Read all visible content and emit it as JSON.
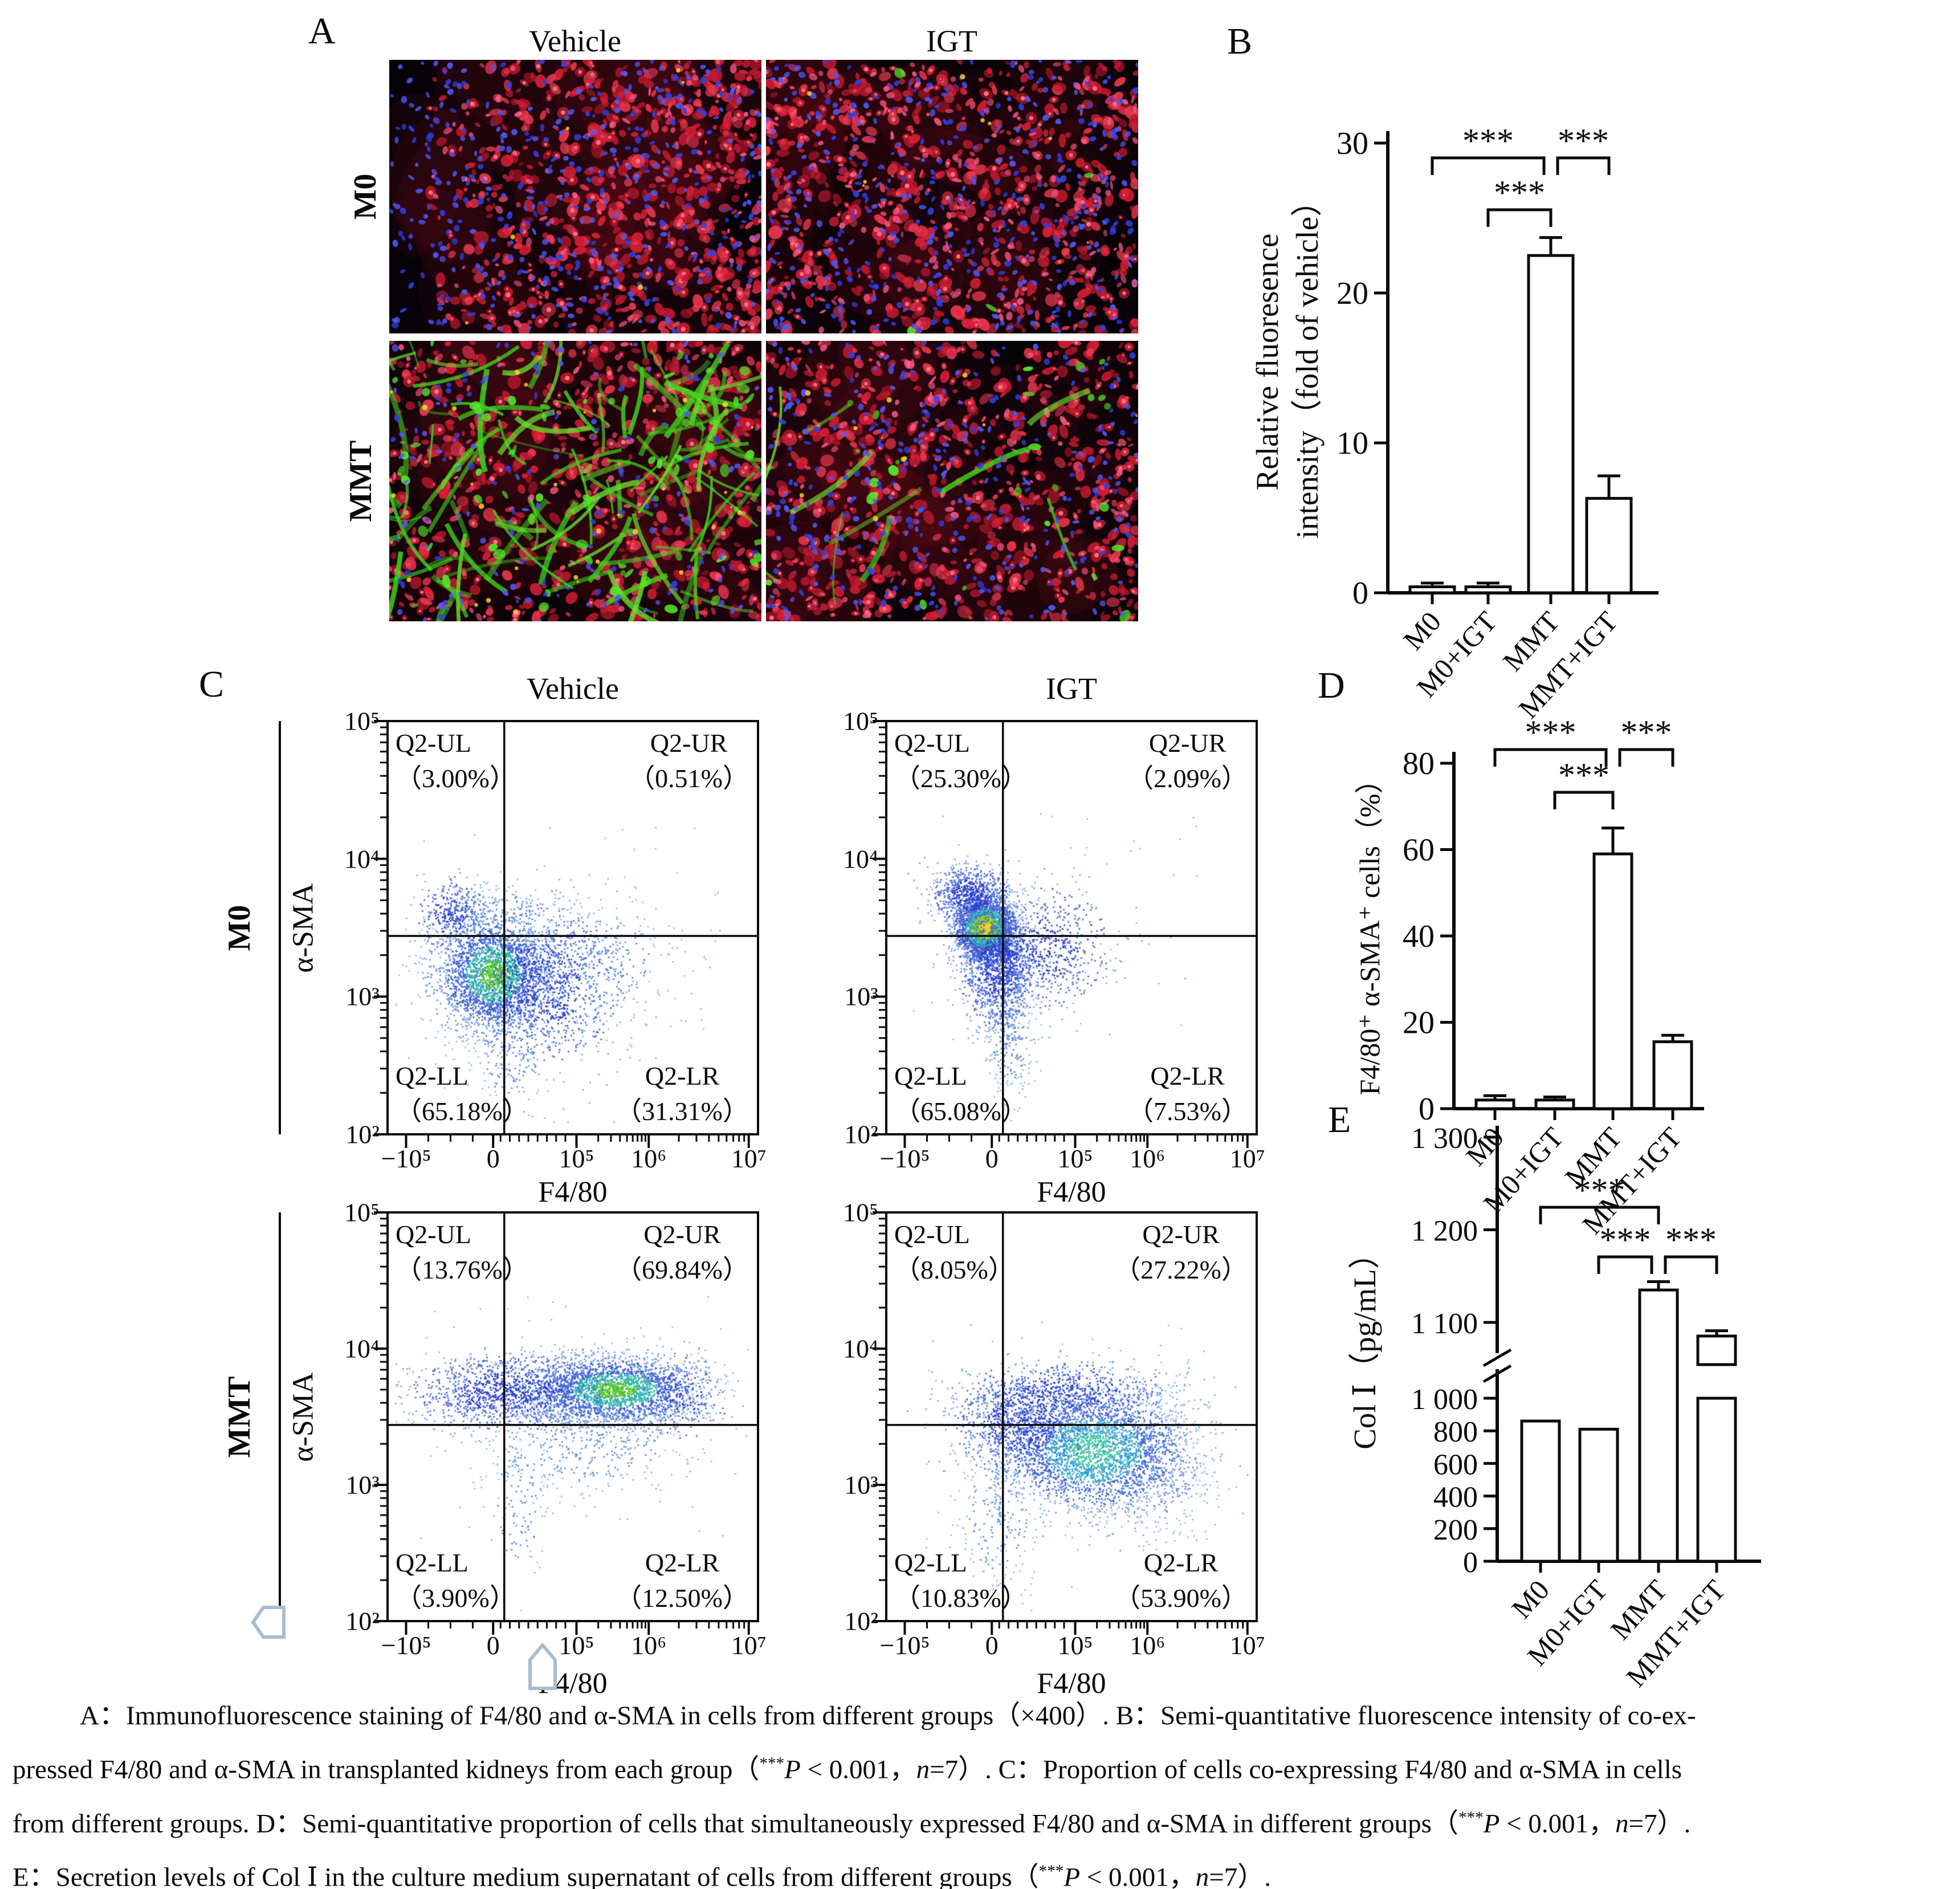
{
  "panel_a": {
    "label": "A",
    "columns": [
      "Vehicle",
      "IGT"
    ],
    "rows": [
      "M0",
      "MMT"
    ],
    "micrographs": [
      {
        "name": "m0-vehicle",
        "seed": 11,
        "red": 660,
        "pink": 120,
        "blue": 430,
        "fibers": 0,
        "greenBlobs": 0,
        "yellow": 6,
        "biasRight": true
      },
      {
        "name": "m0-igt",
        "seed": 22,
        "red": 680,
        "pink": 230,
        "blue": 390,
        "fibers": 0,
        "greenBlobs": 4,
        "yellow": 8,
        "biasRight": false
      },
      {
        "name": "mmt-vehicle",
        "seed": 33,
        "red": 640,
        "pink": 90,
        "blue": 160,
        "fibers": 110,
        "greenBlobs": 70,
        "yellow": 30,
        "biasRight": false
      },
      {
        "name": "mmt-igt",
        "seed": 44,
        "red": 660,
        "pink": 140,
        "blue": 330,
        "fibers": 10,
        "greenBlobs": 26,
        "yellow": 10,
        "biasRight": false
      }
    ]
  },
  "panel_b": {
    "label": "B"
  },
  "panel_c": {
    "label": "C",
    "columns": [
      "Vehicle",
      "IGT"
    ],
    "rows": [
      "M0",
      "MMT"
    ],
    "ylabel": "α-SMA",
    "xlabel": "F4/80",
    "y_ticks": [
      "10⁵",
      "10⁴",
      "10³",
      "10²"
    ],
    "x_ticks": [
      "−10⁵",
      "0",
      "10⁵",
      "10⁶",
      "10⁷"
    ],
    "plots": [
      {
        "name": "m0-vehicle",
        "seed": 101,
        "quadrants": [
          {
            "id": "Q2-UL",
            "pct": "（3.00%）"
          },
          {
            "id": "Q2-UR",
            "pct": "（0.51%）"
          },
          {
            "id": "Q2-LL",
            "pct": "（65.18%）"
          },
          {
            "id": "Q2-LR",
            "pct": "（31.31%）"
          }
        ],
        "clusters": [
          [
            0.285,
            0.615,
            0.075,
            0.07,
            2400,
            "core_green"
          ],
          [
            0.42,
            0.64,
            0.105,
            0.09,
            1100,
            "blue"
          ],
          [
            0.17,
            0.47,
            0.045,
            0.045,
            320,
            "blue"
          ],
          [
            0.55,
            0.58,
            0.12,
            0.08,
            330,
            "light"
          ],
          [
            0.33,
            0.82,
            0.05,
            0.07,
            140,
            "light"
          ],
          [
            0.3,
            0.46,
            0.1,
            0.03,
            160,
            "light"
          ],
          [
            0.45,
            0.55,
            0.42,
            0.3,
            60,
            "uni"
          ]
        ]
      },
      {
        "name": "m0-igt",
        "seed": 102,
        "quadrants": [
          {
            "id": "Q2-UL",
            "pct": "（25.30%）"
          },
          {
            "id": "Q2-UR",
            "pct": "（2.09%）"
          },
          {
            "id": "Q2-LL",
            "pct": "（65.08%）"
          },
          {
            "id": "Q2-LR",
            "pct": "（7.53%）"
          }
        ],
        "clusters": [
          [
            0.265,
            0.5,
            0.042,
            0.038,
            2400,
            "core_yellow"
          ],
          [
            0.3,
            0.6,
            0.05,
            0.07,
            1200,
            "blue"
          ],
          [
            0.225,
            0.42,
            0.05,
            0.035,
            700,
            "blue"
          ],
          [
            0.42,
            0.55,
            0.09,
            0.07,
            650,
            "blue"
          ],
          [
            0.33,
            0.76,
            0.035,
            0.08,
            260,
            "light"
          ],
          [
            0.45,
            0.5,
            0.4,
            0.28,
            50,
            "uni"
          ]
        ]
      },
      {
        "name": "mmt-vehicle",
        "seed": 103,
        "quadrants": [
          {
            "id": "Q2-UL",
            "pct": "（13.76%）"
          },
          {
            "id": "Q2-UR",
            "pct": "（69.84%）"
          },
          {
            "id": "Q2-LL",
            "pct": "（3.90%）"
          },
          {
            "id": "Q2-LR",
            "pct": "（12.50%）"
          }
        ],
        "clusters": [
          [
            0.615,
            0.435,
            0.115,
            0.042,
            2400,
            "core_green"
          ],
          [
            0.33,
            0.44,
            0.13,
            0.045,
            1250,
            "blue"
          ],
          [
            0.52,
            0.56,
            0.16,
            0.07,
            420,
            "light"
          ],
          [
            0.35,
            0.72,
            0.04,
            0.1,
            110,
            "light"
          ],
          [
            0.8,
            0.45,
            0.06,
            0.05,
            160,
            "blue"
          ],
          [
            0.5,
            0.5,
            0.42,
            0.3,
            70,
            "uni"
          ]
        ]
      },
      {
        "name": "mmt-igt",
        "seed": 104,
        "quadrants": [
          {
            "id": "Q2-UL",
            "pct": "（8.05%）"
          },
          {
            "id": "Q2-UR",
            "pct": "（27.22%）"
          },
          {
            "id": "Q2-LL",
            "pct": "（10.83%）"
          },
          {
            "id": "Q2-LR",
            "pct": "（53.90%）"
          }
        ],
        "clusters": [
          [
            0.56,
            0.585,
            0.125,
            0.075,
            2600,
            "core_cyan"
          ],
          [
            0.36,
            0.52,
            0.09,
            0.06,
            900,
            "blue"
          ],
          [
            0.48,
            0.44,
            0.14,
            0.035,
            600,
            "blue"
          ],
          [
            0.7,
            0.62,
            0.1,
            0.09,
            500,
            "light"
          ],
          [
            0.3,
            0.75,
            0.06,
            0.09,
            220,
            "light"
          ],
          [
            0.5,
            0.55,
            0.4,
            0.3,
            90,
            "uni"
          ]
        ]
      }
    ]
  },
  "panel_d": {
    "label": "D"
  },
  "panel_e": {
    "label": "E"
  },
  "chart_data": [
    {
      "id": "B",
      "type": "bar",
      "categories": [
        "M0",
        "M0+IGT",
        "MMT",
        "MMT+IGT"
      ],
      "values": [
        0.4,
        0.4,
        22.5,
        6.3
      ],
      "errors": [
        0.25,
        0.25,
        1.2,
        1.5
      ],
      "ylabel_lines": [
        "Relative fluoresence",
        "intensity（fold of vehicle）"
      ],
      "yticks": [
        0,
        10,
        20,
        30
      ],
      "ytick_labels": [
        "0",
        "10",
        "20",
        "30"
      ],
      "ylim": [
        0,
        30
      ],
      "sig": [
        {
          "a": 0,
          "b": 2,
          "label": "***",
          "tier": 1,
          "dx2": -12
        },
        {
          "a": 1,
          "b": 2,
          "label": "***",
          "tier": 0
        },
        {
          "a": 2,
          "b": 3,
          "label": "***",
          "tier": 1,
          "dx1": 12
        }
      ]
    },
    {
      "id": "D",
      "type": "bar",
      "categories": [
        "M0",
        "M0+IGT",
        "MMT",
        "MMT+IGT"
      ],
      "values": [
        2,
        2,
        59,
        15.5
      ],
      "errors": [
        1,
        0.7,
        6,
        1.5
      ],
      "ylabel": "F4/80⁺ α-SMA⁺ cells（%）",
      "yticks": [
        0,
        20,
        40,
        60,
        80
      ],
      "ytick_labels": [
        "0",
        "20",
        "40",
        "60",
        "80"
      ],
      "ylim": [
        0,
        80
      ],
      "sig": [
        {
          "a": 0,
          "b": 2,
          "label": "***",
          "tier": 1,
          "dx2": -12
        },
        {
          "a": 1,
          "b": 2,
          "label": "***",
          "tier": 0
        },
        {
          "a": 2,
          "b": 3,
          "label": "***",
          "tier": 1,
          "dx1": 12
        }
      ]
    },
    {
      "id": "E",
      "type": "bar",
      "categories": [
        "M0",
        "M0+IGT",
        "MMT",
        "MMT+IGT"
      ],
      "values": [
        860,
        810,
        1135,
        1082
      ],
      "errors": [
        0,
        0,
        9,
        7
      ],
      "ylabel": "Col Ⅰ（pg/mL）",
      "yticks_lower": [
        0,
        200,
        400,
        600,
        800,
        1000
      ],
      "ytick_lower_labels": [
        "0",
        "200",
        "400",
        "600",
        "800",
        "1 000"
      ],
      "yticks_upper": [
        1100,
        1200,
        1300
      ],
      "ytick_upper_labels": [
        "1 100",
        "1 200",
        "1 300"
      ],
      "axis_break": [
        1000,
        1100
      ],
      "ylim": [
        0,
        1300
      ],
      "sig": [
        {
          "a": 0,
          "b": 2,
          "label": "***",
          "tier": 1
        },
        {
          "a": 1,
          "b": 2,
          "label": "***",
          "tier": 0,
          "dx2": -12
        },
        {
          "a": 2,
          "b": 3,
          "label": "***",
          "tier": 0,
          "dx1": 12
        }
      ]
    },
    {
      "id": "C",
      "type": "scatter",
      "xlabel": "F4/80",
      "ylabel": "α-SMA",
      "groups": [
        {
          "row": "M0",
          "col": "Vehicle",
          "Q2_UL": 3.0,
          "Q2_UR": 0.51,
          "Q2_LL": 65.18,
          "Q2_LR": 31.31
        },
        {
          "row": "M0",
          "col": "IGT",
          "Q2_UL": 25.3,
          "Q2_UR": 2.09,
          "Q2_LL": 65.08,
          "Q2_LR": 7.53
        },
        {
          "row": "MMT",
          "col": "Vehicle",
          "Q2_UL": 13.76,
          "Q2_UR": 69.84,
          "Q2_LL": 3.9,
          "Q2_LR": 12.5
        },
        {
          "row": "MMT",
          "col": "IGT",
          "Q2_UL": 8.05,
          "Q2_UR": 27.22,
          "Q2_LL": 10.83,
          "Q2_LR": 53.9
        }
      ]
    }
  ],
  "caption": {
    "lines": [
      [
        {
          "t": "A：Immunofluorescence staining of F4/80 and α-SMA in cells from different groups（×400）. B：Semi-quantitative fluorescence intensity of co-ex-"
        }
      ],
      [
        {
          "t": "pressed F4/80 and α-SMA in transplanted kidneys from each group（"
        },
        {
          "t": "***",
          "sup": true
        },
        {
          "t": "P",
          "i": true
        },
        {
          "t": " < 0.001，"
        },
        {
          "t": "n",
          "i": true
        },
        {
          "t": "=7）. C：Proportion of cells co-expressing F4/80 and α-SMA in cells"
        }
      ],
      [
        {
          "t": "from different groups. D：Semi-quantitative proportion of cells that simultaneously expressed F4/80 and α-SMA in different groups（"
        },
        {
          "t": "***",
          "sup": true
        },
        {
          "t": "P",
          "i": true
        },
        {
          "t": " < 0.001，"
        },
        {
          "t": "n",
          "i": true
        },
        {
          "t": "=7）."
        }
      ],
      [
        {
          "t": "E：Secretion levels of Col Ⅰ in the culture medium supernatant of cells from different groups（"
        },
        {
          "t": "***",
          "sup": true
        },
        {
          "t": "P",
          "i": true
        },
        {
          "t": " < 0.001，"
        },
        {
          "t": "n",
          "i": true
        },
        {
          "t": "=7）."
        }
      ]
    ]
  }
}
